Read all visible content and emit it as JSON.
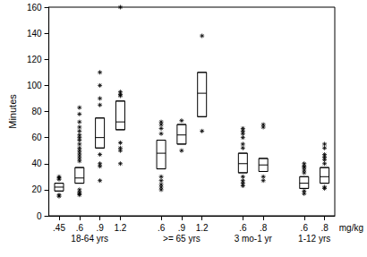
{
  "chart_data": {
    "type": "boxplot",
    "ylabel": "Minutes",
    "xlabel": "mg/kg",
    "ylim": [
      0,
      160
    ],
    "yticks": [
      0,
      20,
      40,
      60,
      80,
      100,
      120,
      140,
      160
    ],
    "grid": false,
    "color": "#000000",
    "marker": "asterisk",
    "groups": [
      {
        "label": "18-64 yrs",
        "categories": [
          ".45",
          ".6",
          ".9",
          "1.2"
        ],
        "boxes": [
          {
            "q1": 19,
            "median": 22,
            "q3": 25
          },
          {
            "q1": 25,
            "median": 29,
            "q3": 37
          },
          {
            "q1": 52,
            "median": 60,
            "q3": 75
          },
          {
            "q1": 66,
            "median": 72,
            "q3": 88
          }
        ],
        "outliers": [
          [
            29,
            30,
            28,
            16,
            15
          ],
          [
            83,
            78,
            72,
            68,
            65,
            62,
            60,
            58,
            55,
            52,
            50,
            48,
            46,
            44,
            42,
            20,
            18,
            17,
            16
          ],
          [
            110,
            100,
            90,
            85,
            47,
            40,
            38,
            27
          ],
          [
            160,
            95,
            93,
            92,
            56,
            52,
            50,
            40
          ]
        ]
      },
      {
        "label": ">= 65 yrs",
        "categories": [
          ".6",
          ".9",
          "1.2"
        ],
        "boxes": [
          {
            "q1": 36,
            "median": 48,
            "q3": 58
          },
          {
            "q1": 55,
            "median": 62,
            "q3": 70
          },
          {
            "q1": 76,
            "median": 94,
            "q3": 110
          }
        ],
        "outliers": [
          [
            72,
            70,
            67,
            63,
            30,
            27,
            24,
            22,
            20
          ],
          [
            73,
            50
          ],
          [
            138,
            65
          ]
        ]
      },
      {
        "label": "3 mo-1 yr",
        "categories": [
          ".6",
          ".8"
        ],
        "boxes": [
          {
            "q1": 33,
            "median": 40,
            "q3": 48
          },
          {
            "q1": 34,
            "median": 39,
            "q3": 44
          }
        ],
        "outliers": [
          [
            67,
            65,
            63,
            60,
            55,
            52,
            30,
            27,
            25,
            23
          ],
          [
            70,
            68,
            30,
            27
          ]
        ]
      },
      {
        "label": "1-12 yrs",
        "categories": [
          ".6",
          ".8"
        ],
        "boxes": [
          {
            "q1": 21,
            "median": 25,
            "q3": 30
          },
          {
            "q1": 25,
            "median": 30,
            "q3": 37
          }
        ],
        "outliers": [
          [
            40,
            38,
            37,
            35,
            33,
            19,
            17
          ],
          [
            55,
            52,
            47,
            45,
            43,
            40,
            22,
            21
          ]
        ]
      }
    ]
  }
}
